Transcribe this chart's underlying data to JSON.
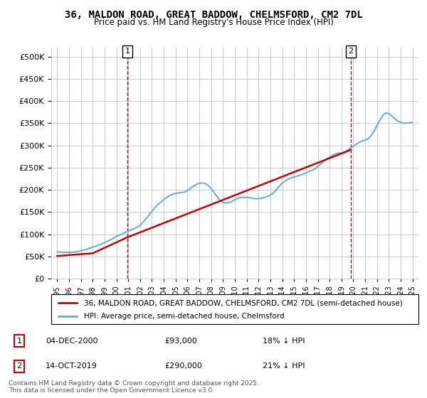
{
  "title1": "36, MALDON ROAD, GREAT BADDOW, CHELMSFORD, CM2 7DL",
  "title2": "Price paid vs. HM Land Registry's House Price Index (HPI)",
  "legend_line1": "36, MALDON ROAD, GREAT BADDOW, CHELMSFORD, CM2 7DL (semi-detached house)",
  "legend_line2": "HPI: Average price, semi-detached house, Chelmsford",
  "annotation1_label": "1",
  "annotation1_date": "04-DEC-2000",
  "annotation1_price": "£93,000",
  "annotation1_pct": "18% ↓ HPI",
  "annotation1_year": 2000.92,
  "annotation2_label": "2",
  "annotation2_date": "14-OCT-2019",
  "annotation2_price": "£290,000",
  "annotation2_pct": "21% ↓ HPI",
  "annotation2_year": 2019.79,
  "footnote": "Contains HM Land Registry data © Crown copyright and database right 2025.\nThis data is licensed under the Open Government Licence v3.0.",
  "ylim": [
    0,
    520000
  ],
  "yticks": [
    0,
    50000,
    100000,
    150000,
    200000,
    250000,
    300000,
    350000,
    400000,
    450000,
    500000
  ],
  "xlim": [
    1994.5,
    2025.5
  ],
  "xticks": [
    1995,
    1996,
    1997,
    1998,
    1999,
    2000,
    2001,
    2002,
    2003,
    2004,
    2005,
    2006,
    2007,
    2008,
    2009,
    2010,
    2011,
    2012,
    2013,
    2014,
    2015,
    2016,
    2017,
    2018,
    2019,
    2020,
    2021,
    2022,
    2023,
    2024,
    2025
  ],
  "hpi_color": "#6baed6",
  "price_color": "#cc0000",
  "vline_color": "#cc0000",
  "grid_color": "#cccccc",
  "background_color": "#ffffff",
  "title_fontsize": 10,
  "subtitle_fontsize": 9,
  "hpi_years": [
    1995,
    1995.25,
    1995.5,
    1995.75,
    1996,
    1996.25,
    1996.5,
    1996.75,
    1997,
    1997.25,
    1997.5,
    1997.75,
    1998,
    1998.25,
    1998.5,
    1998.75,
    1999,
    1999.25,
    1999.5,
    1999.75,
    2000,
    2000.25,
    2000.5,
    2000.75,
    2001,
    2001.25,
    2001.5,
    2001.75,
    2002,
    2002.25,
    2002.5,
    2002.75,
    2003,
    2003.25,
    2003.5,
    2003.75,
    2004,
    2004.25,
    2004.5,
    2004.75,
    2005,
    2005.25,
    2005.5,
    2005.75,
    2006,
    2006.25,
    2006.5,
    2006.75,
    2007,
    2007.25,
    2007.5,
    2007.75,
    2008,
    2008.25,
    2008.5,
    2008.75,
    2009,
    2009.25,
    2009.5,
    2009.75,
    2010,
    2010.25,
    2010.5,
    2010.75,
    2011,
    2011.25,
    2011.5,
    2011.75,
    2012,
    2012.25,
    2012.5,
    2012.75,
    2013,
    2013.25,
    2013.5,
    2013.75,
    2014,
    2014.25,
    2014.5,
    2014.75,
    2015,
    2015.25,
    2015.5,
    2015.75,
    2016,
    2016.25,
    2016.5,
    2016.75,
    2017,
    2017.25,
    2017.5,
    2017.75,
    2018,
    2018.25,
    2018.5,
    2018.75,
    2019,
    2019.25,
    2019.5,
    2019.75,
    2020,
    2020.25,
    2020.5,
    2020.75,
    2021,
    2021.25,
    2021.5,
    2021.75,
    2022,
    2022.25,
    2022.5,
    2022.75,
    2023,
    2023.25,
    2023.5,
    2023.75,
    2024,
    2024.25,
    2024.5,
    2024.75,
    2025
  ],
  "hpi_values": [
    60000,
    59500,
    59200,
    59000,
    58800,
    59200,
    60000,
    61000,
    62500,
    64000,
    66000,
    68500,
    71000,
    73000,
    75500,
    78000,
    81000,
    84000,
    87500,
    91000,
    95000,
    98000,
    101000,
    104000,
    107000,
    110000,
    113000,
    116000,
    120000,
    127000,
    135000,
    143000,
    152000,
    160000,
    167000,
    172000,
    178000,
    183000,
    187000,
    190000,
    192000,
    193000,
    194000,
    195000,
    198000,
    203000,
    208000,
    212000,
    215000,
    215500,
    214000,
    210000,
    203000,
    194000,
    184000,
    176000,
    172000,
    170000,
    171000,
    174000,
    178000,
    181000,
    183000,
    183000,
    183000,
    182000,
    181000,
    180000,
    180000,
    181000,
    183000,
    185000,
    188000,
    193000,
    200000,
    208000,
    215000,
    220000,
    224000,
    227000,
    229000,
    231000,
    233000,
    235000,
    238000,
    241000,
    244000,
    247000,
    252000,
    258000,
    264000,
    269000,
    274000,
    278000,
    281000,
    283000,
    283000,
    285000,
    289000,
    294000,
    298000,
    303000,
    307000,
    310000,
    312000,
    315000,
    322000,
    332000,
    345000,
    357000,
    368000,
    373000,
    372000,
    366000,
    360000,
    355000,
    352000,
    350000,
    350000,
    351000,
    352000
  ],
  "price_years": [
    1995.0,
    1998.0,
    2000.92,
    2019.79
  ],
  "price_values": [
    51000,
    57000,
    93000,
    290000
  ]
}
